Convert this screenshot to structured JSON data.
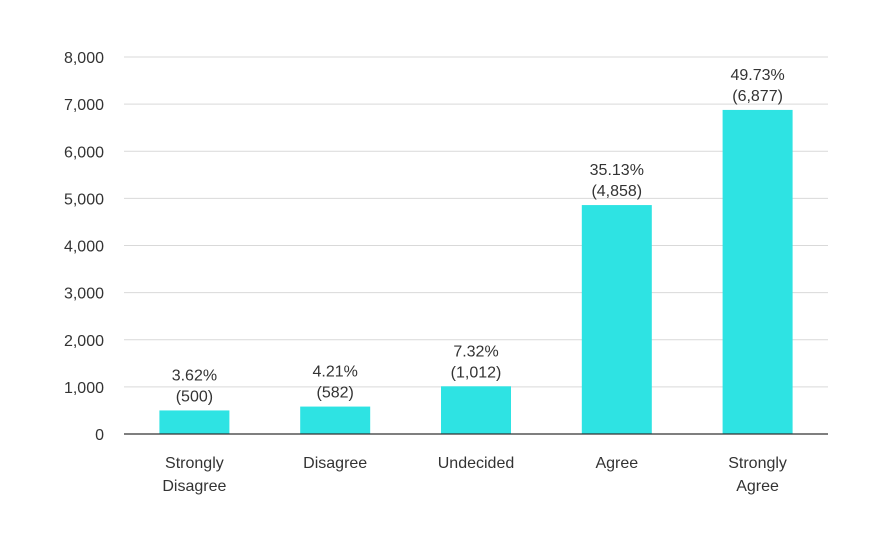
{
  "chart_data": {
    "type": "bar",
    "categories": [
      [
        "Strongly",
        "Disagree"
      ],
      [
        "Disagree"
      ],
      [
        "Undecided"
      ],
      [
        "Agree"
      ],
      [
        "Strongly",
        "Agree"
      ]
    ],
    "values": [
      500,
      582,
      1012,
      4858,
      6877
    ],
    "data_labels": [
      [
        "3.62%",
        "(500)"
      ],
      [
        "4.21%",
        "(582)"
      ],
      [
        "7.32%",
        "(1,012)"
      ],
      [
        "35.13%",
        "(4,858)"
      ],
      [
        "49.73%",
        "(6,877)"
      ]
    ],
    "yticks": [
      "0",
      "1,000",
      "2,000",
      "3,000",
      "4,000",
      "5,000",
      "6,000",
      "7,000",
      "8,000"
    ],
    "ylim": [
      0,
      8000
    ],
    "grid": true,
    "legend": "none",
    "title": "",
    "xlabel": "",
    "ylabel": "",
    "colors": {
      "bar": "#2ee3e3"
    }
  }
}
